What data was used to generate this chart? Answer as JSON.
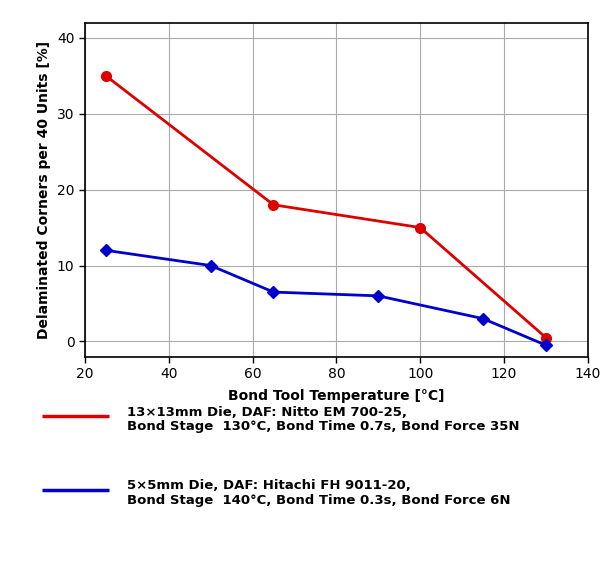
{
  "red_x": [
    25,
    65,
    100,
    130
  ],
  "red_y": [
    35,
    18,
    15,
    0.5
  ],
  "blue_x": [
    25,
    50,
    65,
    90,
    115,
    130
  ],
  "blue_y": [
    12,
    10,
    6.5,
    6,
    3,
    -0.5
  ],
  "red_color": "#dd0000",
  "blue_color": "#0000cc",
  "xlabel": "Bond Tool Temperature [°C]",
  "ylabel": "Delaminated Corners per 40 Units [%]",
  "xlim": [
    20,
    140
  ],
  "ylim": [
    -2,
    42
  ],
  "xticks": [
    20,
    40,
    60,
    80,
    100,
    120,
    140
  ],
  "yticks": [
    0,
    10,
    20,
    30,
    40
  ],
  "red_label_line1": "13×13mm Die, DAF: Nitto EM 700-25,",
  "red_label_line2": "Bond Stage  130°C, Bond Time 0.7s, Bond Force 35N",
  "blue_label_line1": "5×5mm Die, DAF: Hitachi FH 9011-20,",
  "blue_label_line2": "Bond Stage  140°C, Bond Time 0.3s, Bond Force 6N",
  "grid_color": "#aaaaaa",
  "bg_color": "#ffffff",
  "marker_red": "o",
  "marker_blue": "D",
  "linewidth": 2.0,
  "markersize_red": 7,
  "markersize_blue": 6,
  "tick_fontsize": 10,
  "axis_label_fontsize": 10,
  "legend_fontsize": 9.5
}
